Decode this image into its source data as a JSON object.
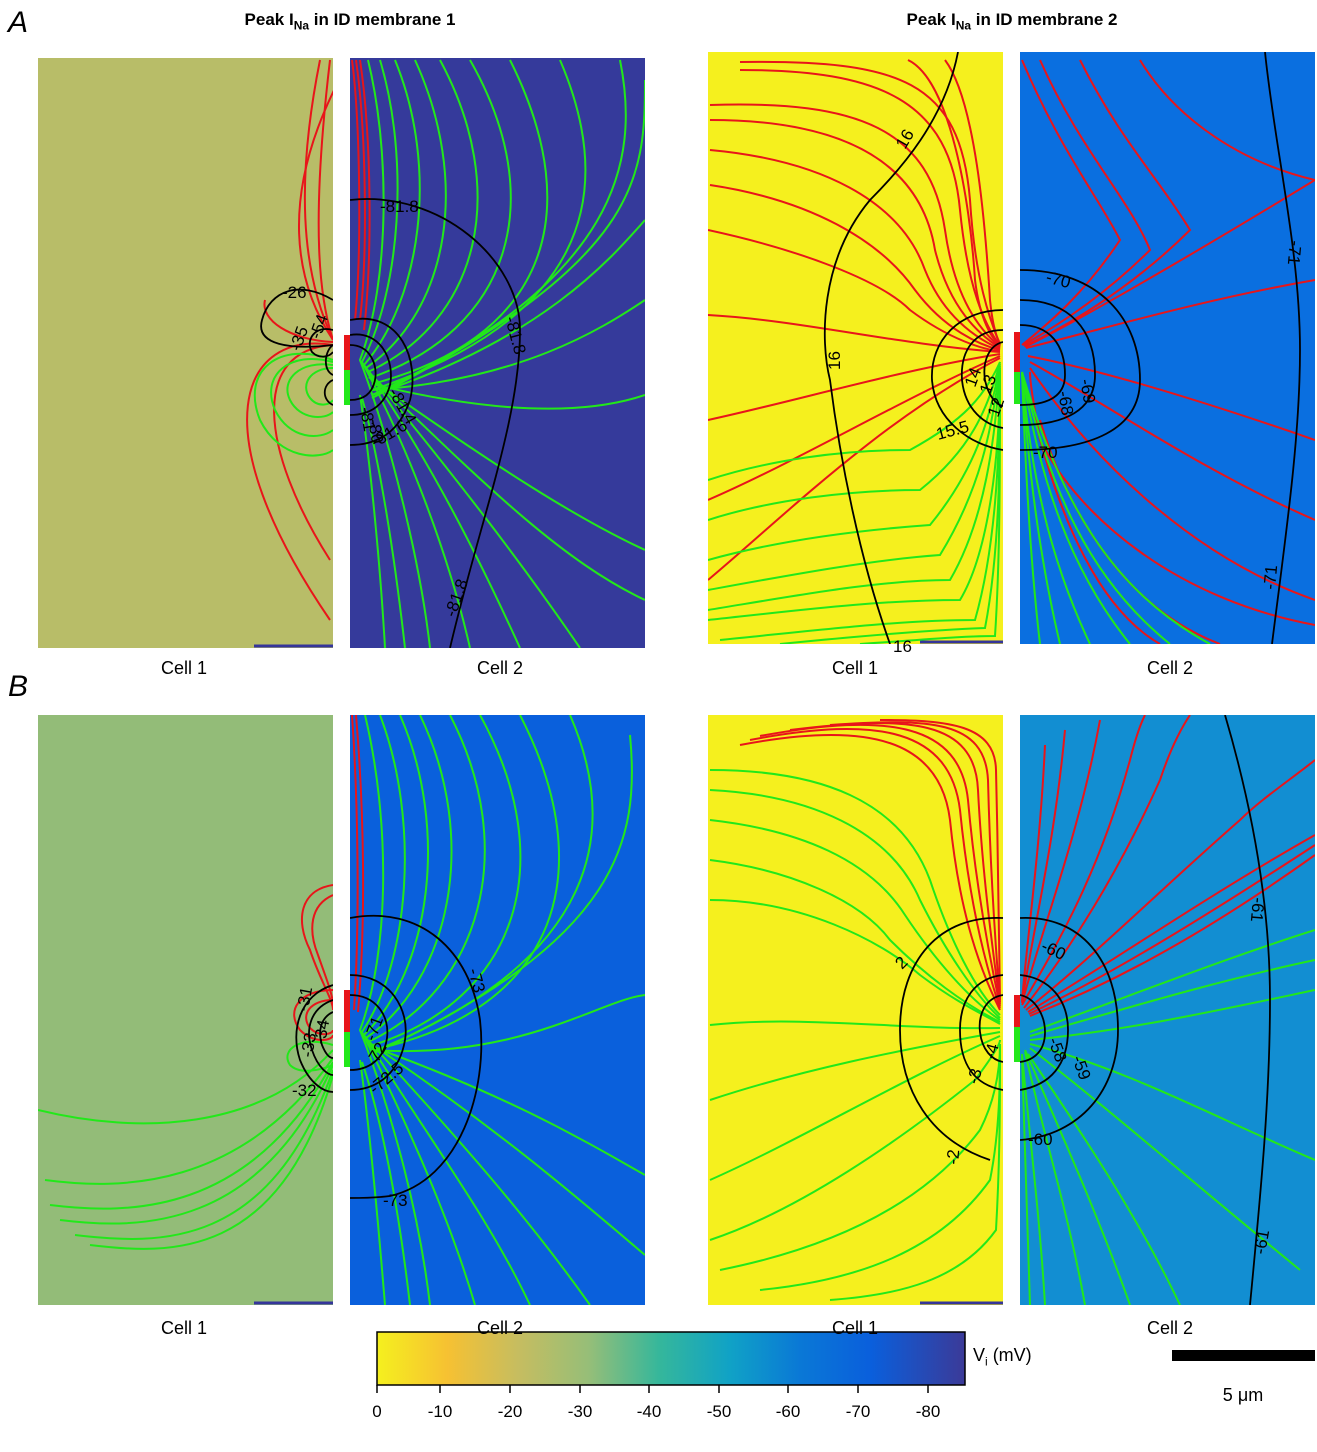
{
  "panels": {
    "A": {
      "letter": "A"
    },
    "B": {
      "letter": "B"
    }
  },
  "columns": {
    "left_title_prefix": "Peak I",
    "left_title_sub": "Na",
    "left_title_suffix": " in ID membrane 1",
    "right_title_prefix": "Peak I",
    "right_title_sub": "Na",
    "right_title_suffix": " in ID membrane 2"
  },
  "cells": {
    "cell1": "Cell 1",
    "cell2": "Cell 2"
  },
  "contour_labels": {
    "A_left_c1": [
      "-26",
      "-35",
      "-54"
    ],
    "A_left_c2": [
      "-81.8",
      "-81.8",
      "-81.8",
      "-81.4",
      "-81.6",
      "-81",
      "-80"
    ],
    "A_right_c1": [
      "16",
      "16",
      "16",
      "15.5",
      "14",
      "13",
      "12"
    ],
    "A_right_c2": [
      "-70",
      "-70",
      "-71",
      "-71",
      "-69",
      "-68"
    ],
    "B_left_c1": [
      "-31",
      "-32",
      "-33",
      "-34"
    ],
    "B_left_c2": [
      "-73",
      "-73",
      "-72.5",
      "-72",
      "-71"
    ],
    "B_right_c1": [
      "2",
      "-2",
      "-3",
      "-4"
    ],
    "B_right_c2": [
      "-60",
      "-60",
      "-61",
      "-61",
      "-59",
      "-58"
    ]
  },
  "colorbar": {
    "label_main": "V",
    "label_sub": "i",
    "label_unit": " (mV)",
    "ticks": [
      "0",
      "-10",
      "-20",
      "-30",
      "-40",
      "-50",
      "-60",
      "-70",
      "-80"
    ],
    "range": [
      0,
      -85
    ],
    "colors": [
      "#f5f01e",
      "#f6c132",
      "#c6bd60",
      "#96be78",
      "#35b79b",
      "#10a2c6",
      "#0a78d6",
      "#0a5fdc",
      "#3b3a98"
    ]
  },
  "scalebar": {
    "label": "5 μm"
  },
  "backgrounds": {
    "A_left_c1": "#b8bd68",
    "A_left_c2": "#353a9b",
    "A_right_c1": "#f5f01e",
    "A_right_c2": "#0a6fe0",
    "B_left_c1": "#93bc78",
    "B_left_c2": "#0a60dc",
    "B_right_c1": "#f5f01e",
    "B_right_c2": "#128ed2"
  }
}
